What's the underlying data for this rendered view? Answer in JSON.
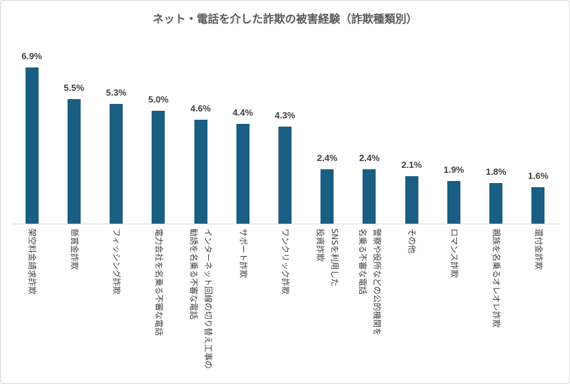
{
  "chart_data": {
    "type": "bar",
    "title": "ネット・電話を介した詐欺の被害経験（詐欺種類別）",
    "categories": [
      "架空料金請求詐欺",
      "懸賞金詐欺",
      "フィッシング詐欺",
      "電力会社を名乗る不審な電話",
      "インターネット回線の切り替え工事の\n勧誘を名乗る不審な電話",
      "サポート詐欺",
      "ワンクリック詐欺",
      "SNSを利用した\n投資詐欺",
      "警察や役所などの公的機関を\n名乗る不審な電話",
      "その他",
      "ロマンス詐欺",
      "親族を名乗るオレオレ詐欺",
      "還付金詐欺"
    ],
    "values": [
      6.9,
      5.5,
      5.3,
      5.0,
      4.6,
      4.4,
      4.3,
      2.4,
      2.4,
      2.1,
      1.9,
      1.8,
      1.6
    ],
    "data_labels": [
      "6.9%",
      "5.5%",
      "5.3%",
      "5.0%",
      "4.6%",
      "4.4%",
      "4.3%",
      "2.4%",
      "2.4%",
      "2.1%",
      "1.9%",
      "1.8%",
      "1.6%"
    ],
    "ylim": [
      0,
      8
    ],
    "grid": false,
    "y_axis_visible": false,
    "bar_color": "#1b5e83"
  },
  "colors": {
    "title": "#595959",
    "labels": "#404040",
    "axis_line": "#d9d9d9",
    "frame_border": "#d9d9d9",
    "background": "#ffffff"
  }
}
